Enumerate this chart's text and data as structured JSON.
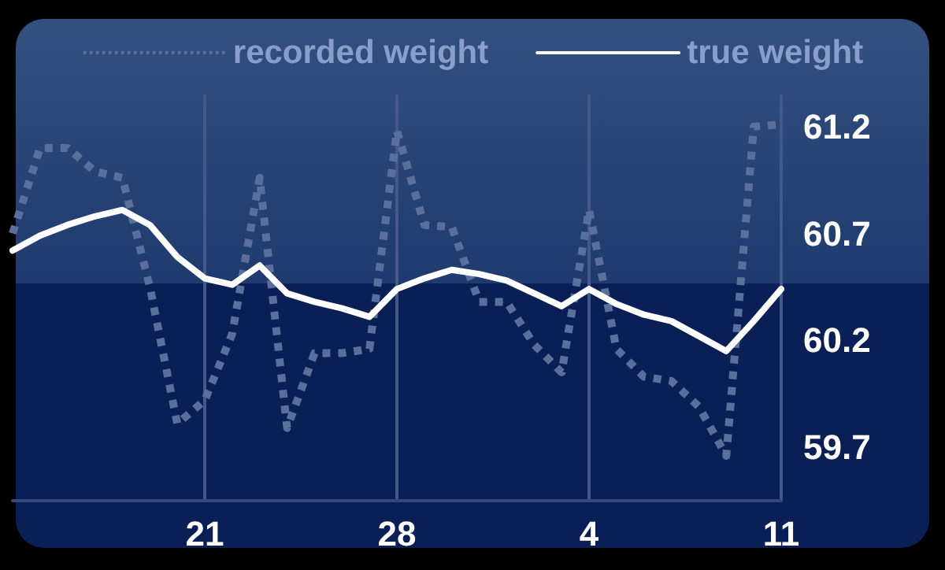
{
  "chart_data": {
    "type": "line",
    "categories": [
      null,
      null,
      null,
      null,
      null,
      null,
      null,
      "21",
      null,
      null,
      null,
      null,
      null,
      null,
      "28",
      null,
      null,
      null,
      null,
      null,
      null,
      "4",
      null,
      null,
      null,
      null,
      null,
      null,
      "11"
    ],
    "series": [
      {
        "name": "recorded weight",
        "color": "#5a6f9c",
        "line_style": "dotted",
        "values": [
          60.7,
          61.1,
          61.1,
          60.99,
          60.96,
          60.45,
          59.81,
          59.92,
          60.23,
          60.96,
          59.79,
          60.14,
          60.14,
          60.16,
          61.18,
          60.74,
          60.73,
          60.38,
          60.38,
          60.18,
          60.05,
          60.81,
          60.16,
          60.03,
          60.01,
          59.89,
          59.66,
          61.2,
          61.21
        ]
      },
      {
        "name": "true weight",
        "color": "#ffffff",
        "line_style": "solid",
        "values": [
          60.62,
          60.69,
          60.74,
          60.78,
          60.81,
          60.74,
          60.59,
          60.49,
          60.46,
          60.55,
          60.42,
          60.38,
          60.35,
          60.31,
          60.44,
          60.49,
          60.53,
          60.51,
          60.48,
          60.42,
          60.36,
          60.44,
          60.37,
          60.32,
          60.29,
          60.22,
          60.15,
          60.29,
          60.44
        ]
      }
    ],
    "ylim": [
      59.45,
      61.35
    ],
    "yticks": [
      59.7,
      60.2,
      60.7,
      61.2
    ],
    "grid": "x",
    "legend": "top",
    "marker": "none"
  }
}
